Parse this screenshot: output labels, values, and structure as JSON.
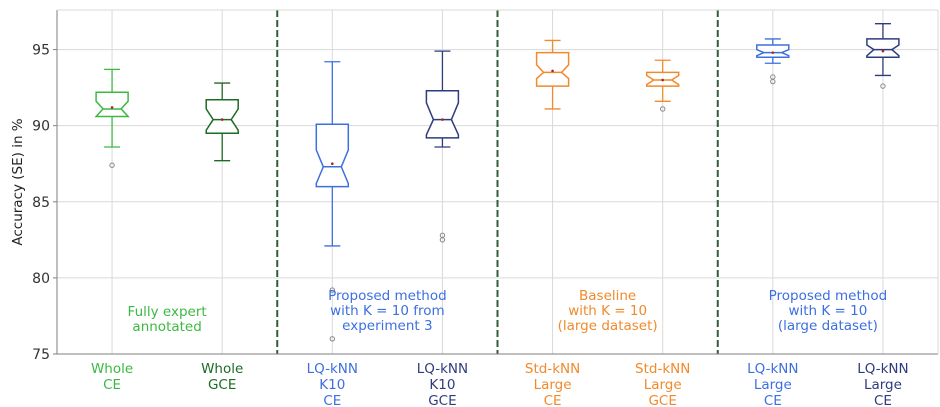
{
  "chart_data": {
    "type": "boxplot",
    "title": "",
    "xlabel": "",
    "ylabel": "Accuracy (SE) in %",
    "ylim": [
      75,
      97.6
    ],
    "yticks": [
      75,
      80,
      85,
      90,
      95
    ],
    "grid": true,
    "colors": {
      "light_green": "#3cb944",
      "dark_green": "#1e6b25",
      "blue": "#3d6fe0",
      "navy": "#2e3c7e",
      "orange": "#f08a2c",
      "separator": "#2f5e3a",
      "grid": "#d9d9d9",
      "axis": "#7f7f7f",
      "outlier": "#888888",
      "mean": "#b02020"
    },
    "categories": [
      {
        "lines": [
          "Whole",
          "CE"
        ],
        "color": "#3cb944",
        "stats": {
          "whisker_low": 88.6,
          "q1": 90.6,
          "median": 91.1,
          "notch_low": 90.6,
          "notch_high": 91.6,
          "q3": 92.2,
          "whisker_high": 93.7,
          "mean": 91.2
        },
        "outliers": [
          87.4
        ]
      },
      {
        "lines": [
          "Whole",
          "GCE"
        ],
        "color": "#1e6b25",
        "stats": {
          "whisker_low": 87.7,
          "q1": 89.5,
          "median": 90.4,
          "notch_low": 89.7,
          "notch_high": 91.1,
          "q3": 91.7,
          "whisker_high": 92.8,
          "mean": 90.4
        },
        "outliers": []
      },
      {
        "lines": [
          "LQ-kNN",
          "K10",
          "CE"
        ],
        "color": "#3d6fe0",
        "stats": {
          "whisker_low": 82.1,
          "q1": 86.0,
          "median": 87.3,
          "notch_low": 86.2,
          "notch_high": 88.4,
          "q3": 90.1,
          "whisker_high": 94.2,
          "mean": 87.5
        },
        "outliers": [
          79.2,
          76.0
        ]
      },
      {
        "lines": [
          "LQ-kNN",
          "K10",
          "GCE"
        ],
        "color": "#2e3c7e",
        "stats": {
          "whisker_low": 88.6,
          "q1": 89.2,
          "median": 90.4,
          "notch_low": 89.4,
          "notch_high": 91.5,
          "q3": 92.3,
          "whisker_high": 94.9,
          "mean": 90.4
        },
        "outliers": [
          82.8,
          82.5
        ]
      },
      {
        "lines": [
          "Std-kNN",
          "Large",
          "CE"
        ],
        "color": "#f08a2c",
        "stats": {
          "whisker_low": 91.1,
          "q1": 92.6,
          "median": 93.5,
          "notch_low": 93.1,
          "notch_high": 94.0,
          "q3": 94.8,
          "whisker_high": 95.6,
          "mean": 93.6
        },
        "outliers": []
      },
      {
        "lines": [
          "Std-kNN",
          "Large",
          "GCE"
        ],
        "color": "#f08a2c",
        "stats": {
          "whisker_low": 91.6,
          "q1": 92.6,
          "median": 93.0,
          "notch_low": 92.7,
          "notch_high": 93.3,
          "q3": 93.5,
          "whisker_high": 94.3,
          "mean": 93.0
        },
        "outliers": [
          91.1
        ]
      },
      {
        "lines": [
          "LQ-kNN",
          "Large",
          "CE"
        ],
        "color": "#3d6fe0",
        "stats": {
          "whisker_low": 94.1,
          "q1": 94.5,
          "median": 94.8,
          "notch_low": 94.6,
          "notch_high": 95.0,
          "q3": 95.3,
          "whisker_high": 95.7,
          "mean": 94.8
        },
        "outliers": [
          93.2,
          92.9
        ]
      },
      {
        "lines": [
          "LQ-kNN",
          "Large",
          "CE"
        ],
        "color": "#2e3c7e",
        "stats": {
          "whisker_low": 93.3,
          "q1": 94.5,
          "median": 95.0,
          "notch_low": 94.6,
          "notch_high": 95.3,
          "q3": 95.7,
          "whisker_high": 96.7,
          "mean": 94.9
        },
        "outliers": [
          92.6
        ]
      }
    ],
    "separators_after": [
      2,
      4,
      6
    ],
    "group_annotations": [
      {
        "lines": [
          "Fully expert",
          "annotated"
        ],
        "color": "#3cb944",
        "group": 0
      },
      {
        "lines": [
          "Proposed method",
          "with K = 10 from",
          "experiment 3"
        ],
        "color": "#3d6fe0",
        "group": 1
      },
      {
        "lines": [
          "Baseline",
          "with K = 10",
          "(large dataset)"
        ],
        "color": "#f08a2c",
        "group": 2
      },
      {
        "lines": [
          "Proposed method",
          "with K = 10",
          "(large dataset)"
        ],
        "color": "#3d6fe0",
        "group": 3
      }
    ]
  }
}
